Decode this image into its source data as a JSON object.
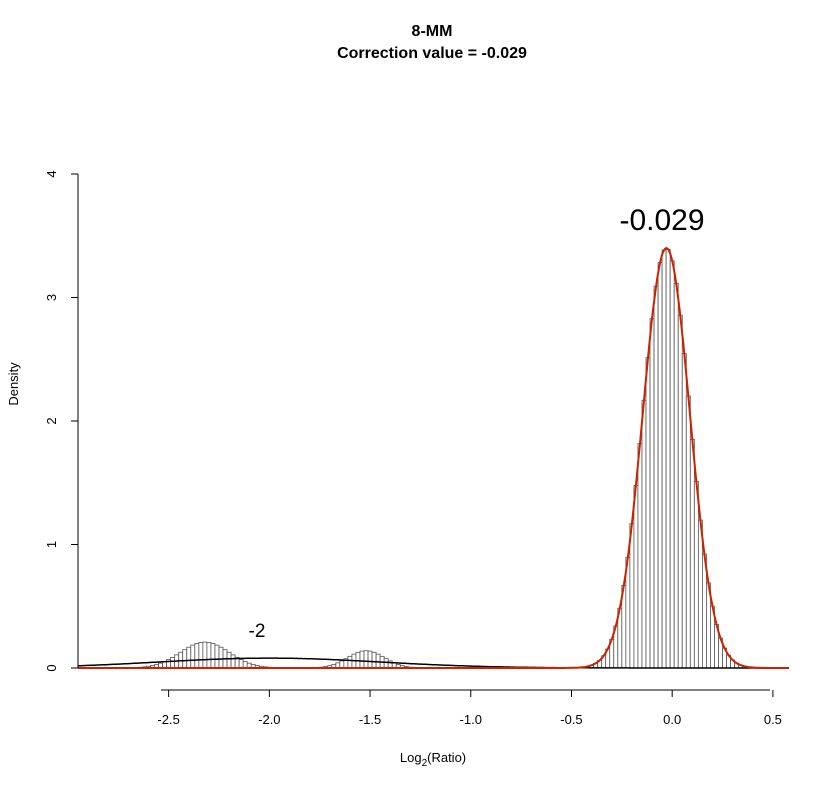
{
  "chart_data": {
    "type": "histogram",
    "title": "8-MM",
    "subtitle": "Correction value = -0.029",
    "xlabel_main": "Log",
    "xlabel_sub": "2",
    "xlabel_tail": "(Ratio)",
    "ylabel": "Density",
    "xlim": [
      -2.95,
      0.58
    ],
    "ylim": [
      0,
      4
    ],
    "x_ticks": [
      -2.5,
      -2.0,
      -1.5,
      -1.0,
      -0.5,
      0.0,
      0.5
    ],
    "x_tick_labels": [
      "-2.5",
      "-2.0",
      "-1.5",
      "-1.0",
      "-0.5",
      "0.0",
      "0.5"
    ],
    "y_ticks": [
      0,
      1,
      2,
      3,
      4
    ],
    "y_tick_labels": [
      "0",
      "1",
      "2",
      "3",
      "4"
    ],
    "peaks": [
      {
        "mean": -0.029,
        "sd": 0.117,
        "height": 3.4,
        "label": "-0.029",
        "fit_color": "#cc2200"
      },
      {
        "mean": -2.0,
        "sd": 0.55,
        "height": 0.08,
        "label": "-2",
        "fit_color": "#000000"
      }
    ],
    "cluster_bumps": [
      {
        "mean": -2.32,
        "sd": 0.12,
        "height": 0.21
      },
      {
        "mean": -1.52,
        "sd": 0.09,
        "height": 0.14
      }
    ],
    "bin_width": 0.02
  }
}
